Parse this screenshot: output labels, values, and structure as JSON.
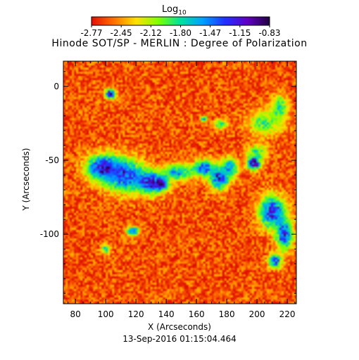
{
  "figure": {
    "title": "Hinode SOT/SP - MERLIN : Degree of Polarization",
    "timestamp": "13-Sep-2016 01:15:04.464",
    "colorbar": {
      "label_main": "Log",
      "label_sub": "10",
      "ticks": [
        "-2.77",
        "-2.45",
        "-2.12",
        "-1.80",
        "-1.47",
        "-1.15",
        "-0.83"
      ],
      "range": [
        -2.77,
        -0.83
      ],
      "colormap": [
        "#e01000",
        "#ff7000",
        "#ffe000",
        "#80ff00",
        "#00e0a0",
        "#00a0ff",
        "#2030ff",
        "#6000c0",
        "#200040"
      ]
    }
  },
  "chart_data": {
    "type": "heatmap",
    "title": "Hinode SOT/SP - MERLIN : Degree of Polarization",
    "xlabel": "X (Arcseconds)",
    "ylabel": "Y (Arcseconds)",
    "xlim": [
      72,
      226
    ],
    "ylim": [
      -147,
      17
    ],
    "x_ticks": [
      80,
      100,
      120,
      140,
      160,
      180,
      200,
      220
    ],
    "y_ticks": [
      0,
      -50,
      -100
    ],
    "value_label": "Log10 Degree of Polarization",
    "value_range": [
      -2.77,
      -0.83
    ],
    "background_level": -2.6,
    "features": [
      {
        "x": 103,
        "y": -5,
        "rx": 3,
        "ry": 3,
        "level": -1.0
      },
      {
        "x": 98,
        "y": -55,
        "rx": 10,
        "ry": 8,
        "level": -1.1
      },
      {
        "x": 112,
        "y": -60,
        "rx": 12,
        "ry": 10,
        "level": -1.2
      },
      {
        "x": 130,
        "y": -65,
        "rx": 10,
        "ry": 7,
        "level": -1.1
      },
      {
        "x": 137,
        "y": -66,
        "rx": 3,
        "ry": 3,
        "level": -0.85
      },
      {
        "x": 148,
        "y": -58,
        "rx": 10,
        "ry": 5,
        "level": -1.6
      },
      {
        "x": 165,
        "y": -55,
        "rx": 6,
        "ry": 5,
        "level": -1.3
      },
      {
        "x": 175,
        "y": -62,
        "rx": 6,
        "ry": 7,
        "level": -1.2
      },
      {
        "x": 182,
        "y": -55,
        "rx": 5,
        "ry": 6,
        "level": -1.5
      },
      {
        "x": 198,
        "y": -52,
        "rx": 4,
        "ry": 4,
        "level": -0.85
      },
      {
        "x": 200,
        "y": -45,
        "rx": 6,
        "ry": 5,
        "level": -1.8
      },
      {
        "x": 205,
        "y": -25,
        "rx": 10,
        "ry": 8,
        "level": -1.9
      },
      {
        "x": 215,
        "y": -15,
        "rx": 5,
        "ry": 8,
        "level": -1.8
      },
      {
        "x": 210,
        "y": -85,
        "rx": 8,
        "ry": 10,
        "level": -1.2
      },
      {
        "x": 218,
        "y": -100,
        "rx": 5,
        "ry": 10,
        "level": -1.3
      },
      {
        "x": 212,
        "y": -118,
        "rx": 4,
        "ry": 4,
        "level": -1.2
      },
      {
        "x": 118,
        "y": -98,
        "rx": 4,
        "ry": 3,
        "level": -1.4
      },
      {
        "x": 100,
        "y": -110,
        "rx": 3,
        "ry": 3,
        "level": -1.8
      },
      {
        "x": 176,
        "y": -26,
        "rx": 4,
        "ry": 3,
        "level": -1.8
      },
      {
        "x": 165,
        "y": -22,
        "rx": 2,
        "ry": 2,
        "level": -1.6
      }
    ]
  }
}
